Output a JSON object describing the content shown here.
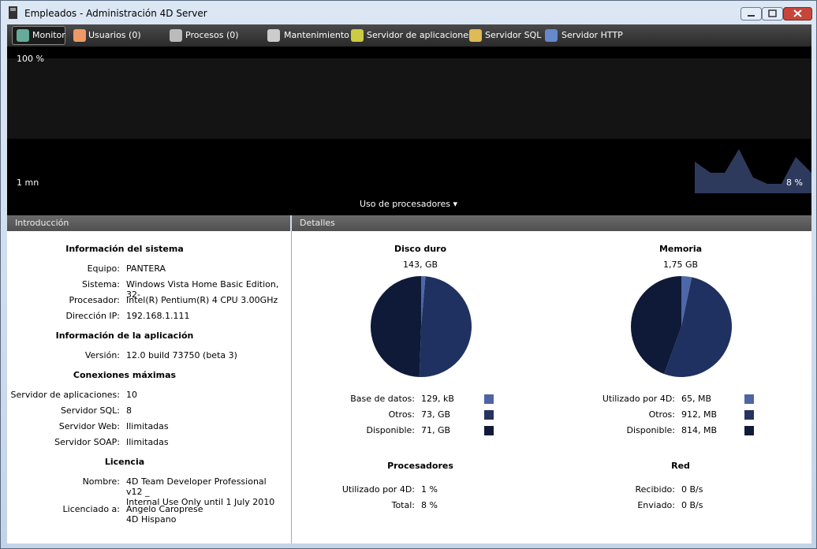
{
  "window": {
    "title": "Empleados - Administración 4D Server"
  },
  "toolbar": {
    "tabs": [
      "Monitor",
      "Usuarios (0)",
      "Procesos (0)",
      "Mantenimiento",
      "Servidor de aplicaciones",
      "Servidor SQL",
      "Servidor HTTP"
    ]
  },
  "monitor": {
    "max_label": "100 %",
    "time_label": "1 mn",
    "current_label": "8 %",
    "selector": "Uso de procesadores"
  },
  "introduction": {
    "title": "Introducción",
    "sections": [
      {
        "heading": "Información del sistema",
        "rows": [
          [
            "Equipo:",
            "PANTERA"
          ],
          [
            "Sistema:",
            "Windows Vista Home Basic Edition, 32-"
          ],
          [
            "Procesador:",
            "Intel(R) Pentium(R) 4 CPU 3.00GHz"
          ],
          [
            "Dirección IP:",
            "192.168.1.111"
          ]
        ]
      },
      {
        "heading": "Información de la aplicación",
        "rows": [
          [
            "Versión:",
            "12.0 build 73750 (beta 3)"
          ]
        ]
      },
      {
        "heading": "Conexiones máximas",
        "rows": [
          [
            "Servidor de aplicaciones:",
            "10"
          ],
          [
            "Servidor SQL:",
            "8"
          ],
          [
            "Servidor Web:",
            "Ilimitadas"
          ],
          [
            "Servidor SOAP:",
            "Ilimitadas"
          ]
        ]
      },
      {
        "heading": "Licencia",
        "rows": [
          [
            "Nombre:",
            "4D Team Developer Professional v12 _\nInternal Use Only until 1 July 2010"
          ],
          [
            "Licenciado a:",
            "Angelo Caroprese\n4D Hispano"
          ]
        ]
      }
    ]
  },
  "details": {
    "title": "Detalles",
    "disk": {
      "heading": "Disco duro",
      "total": "143, GB",
      "legend": [
        [
          "Base de datos:",
          "129, kB"
        ],
        [
          "Otros:",
          "73, GB"
        ],
        [
          "Disponible:",
          "71, GB"
        ]
      ]
    },
    "memory": {
      "heading": "Memoria",
      "total": "1,75 GB",
      "legend": [
        [
          "Utilizado por 4D:",
          "65, MB"
        ],
        [
          "Otros:",
          "912, MB"
        ],
        [
          "Disponible:",
          "814, MB"
        ]
      ]
    },
    "processors": {
      "heading": "Procesadores",
      "rows": [
        [
          "Utilizado por 4D:",
          "1 %"
        ],
        [
          "Total:",
          "8 %"
        ]
      ]
    },
    "network": {
      "heading": "Red",
      "rows": [
        [
          "Recibido:",
          "0 B/s"
        ],
        [
          "Enviado:",
          "0 B/s"
        ]
      ]
    }
  }
}
